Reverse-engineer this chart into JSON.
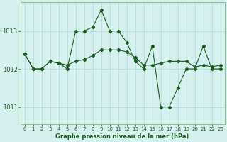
{
  "title": "Graphe pression niveau de la mer (hPa)",
  "background_color": "#d6f0f0",
  "grid_color": "#b8dede",
  "line_color": "#1a5c1a",
  "xlim": [
    -0.5,
    23.5
  ],
  "ylim": [
    1010.55,
    1013.75
  ],
  "yticks": [
    1011,
    1012,
    1013
  ],
  "xticks": [
    0,
    1,
    2,
    3,
    4,
    5,
    6,
    7,
    8,
    9,
    10,
    11,
    12,
    13,
    14,
    15,
    16,
    17,
    18,
    19,
    20,
    21,
    22,
    23
  ],
  "series1_x": [
    0,
    1,
    2,
    3,
    4,
    5,
    6,
    7,
    8,
    9,
    10,
    11,
    12,
    13,
    14,
    15,
    16,
    17,
    18,
    19,
    20,
    21,
    22,
    23
  ],
  "series1_y": [
    1012.4,
    1012.0,
    1012.0,
    1012.2,
    1012.15,
    1012.1,
    1012.2,
    1012.25,
    1012.35,
    1012.5,
    1012.5,
    1012.5,
    1012.45,
    1012.3,
    1012.1,
    1012.1,
    1012.15,
    1012.2,
    1012.2,
    1012.2,
    1012.05,
    1012.1,
    1012.05,
    1012.1
  ],
  "series2_x": [
    0,
    1,
    2,
    3,
    4,
    5,
    6,
    7,
    8,
    9,
    10,
    11,
    12,
    13,
    14,
    15,
    16,
    17,
    18,
    19,
    20,
    21,
    22,
    23
  ],
  "series2_y": [
    1012.4,
    1012.0,
    1012.0,
    1012.2,
    1012.15,
    1012.0,
    1013.0,
    1013.0,
    1013.1,
    1013.55,
    1013.0,
    1013.0,
    1012.7,
    1012.2,
    1012.0,
    1012.6,
    1011.0,
    1011.0,
    1011.5,
    1012.0,
    1012.0,
    1012.6,
    1012.0,
    1012.0
  ]
}
